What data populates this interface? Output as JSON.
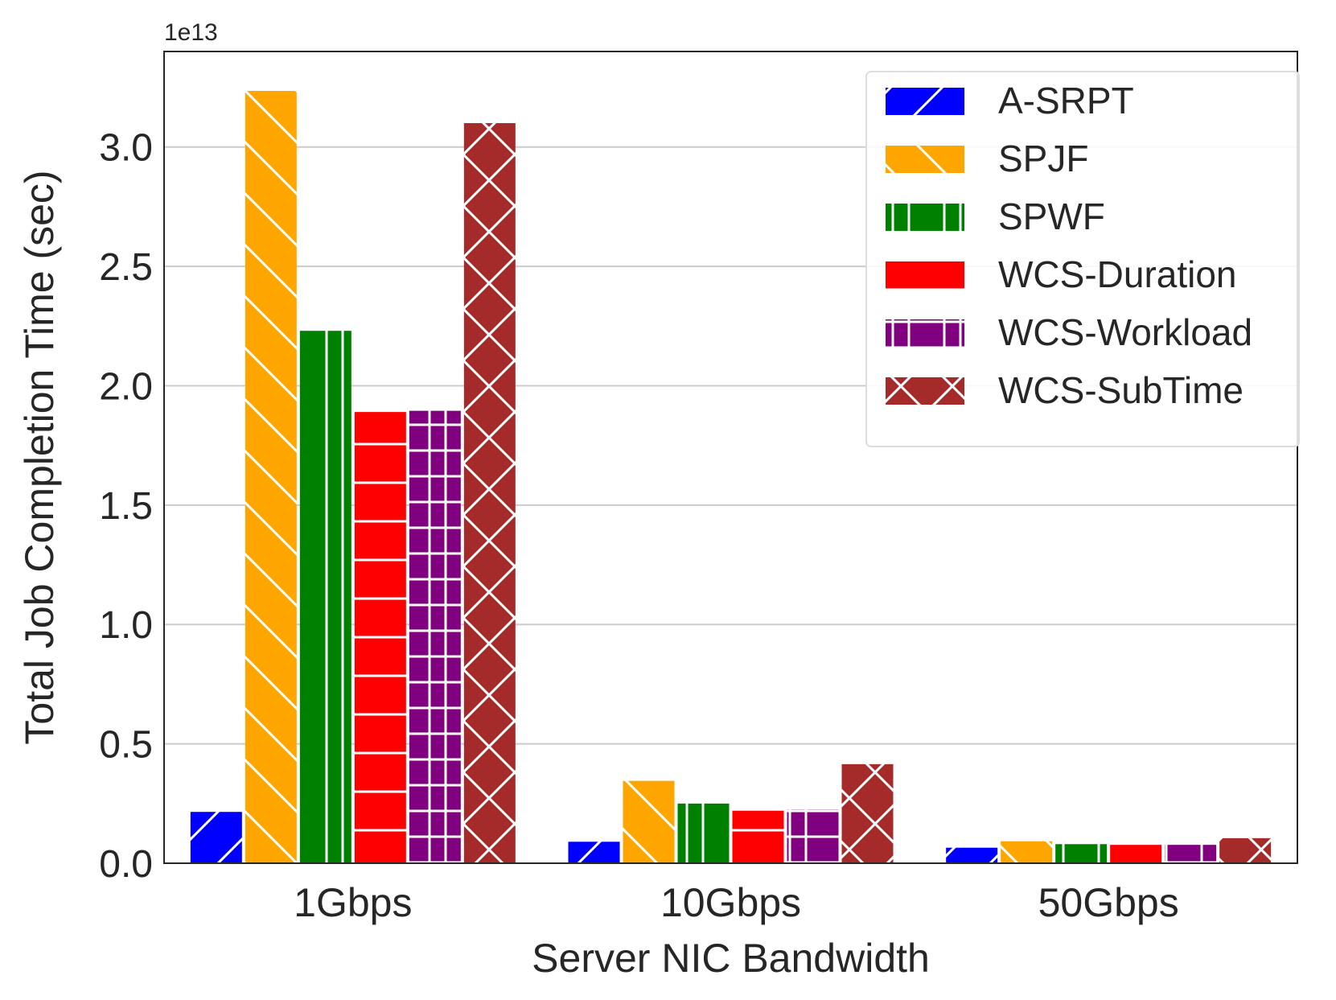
{
  "chart_data": {
    "type": "bar",
    "xlabel": "Server NIC Bandwidth",
    "ylabel": "Total Job Completion Time (sec)",
    "y_offset_label": "1e13",
    "y_scale": 10000000000000.0,
    "ylim": [
      0,
      3.4
    ],
    "yticks": [
      "0.0",
      "0.5",
      "1.0",
      "1.5",
      "2.0",
      "2.5",
      "3.0"
    ],
    "categories": [
      "1Gbps",
      "10Gbps",
      "50Gbps"
    ],
    "grid": "horizontal",
    "legend_position": "top-right",
    "series": [
      {
        "name": "A-SRPT",
        "color": "#0000ff",
        "hatch": "slash",
        "values": [
          0.215,
          0.09,
          0.065
        ]
      },
      {
        "name": "SPJF",
        "color": "#ffa500",
        "hatch": "backslash",
        "values": [
          3.235,
          0.345,
          0.092
        ]
      },
      {
        "name": "SPWF",
        "color": "#008000",
        "hatch": "vertical",
        "values": [
          2.23,
          0.25,
          0.08
        ]
      },
      {
        "name": "WCS-Duration",
        "color": "#ff0000",
        "hatch": "horizontal",
        "values": [
          1.89,
          0.22,
          0.077
        ]
      },
      {
        "name": "WCS-Workload",
        "color": "#800080",
        "hatch": "grid",
        "values": [
          1.895,
          0.225,
          0.077
        ]
      },
      {
        "name": "WCS-SubTime",
        "color": "#a52a2a",
        "hatch": "cross",
        "values": [
          3.1,
          0.415,
          0.105
        ]
      }
    ]
  }
}
